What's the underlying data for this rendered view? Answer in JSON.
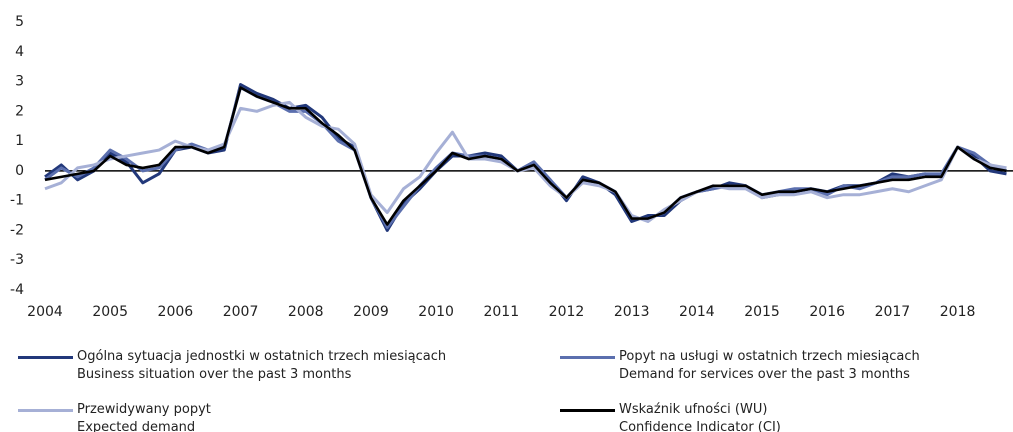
{
  "chart_data": {
    "type": "line",
    "x": [
      2004,
      2004.25,
      2004.5,
      2004.75,
      2005,
      2005.25,
      2005.5,
      2005.75,
      2006,
      2006.25,
      2006.5,
      2006.75,
      2007,
      2007.25,
      2007.5,
      2007.75,
      2008,
      2008.25,
      2008.5,
      2008.75,
      2009,
      2009.25,
      2009.5,
      2009.75,
      2010,
      2010.25,
      2010.5,
      2010.75,
      2011,
      2011.25,
      2011.5,
      2011.75,
      2012,
      2012.25,
      2012.5,
      2012.75,
      2013,
      2013.25,
      2013.5,
      2013.75,
      2014,
      2014.25,
      2014.5,
      2014.75,
      2015,
      2015.25,
      2015.5,
      2015.75,
      2016,
      2016.25,
      2016.5,
      2016.75,
      2017,
      2017.25,
      2017.5,
      2017.75,
      2018,
      2018.25,
      2018.5,
      2018.75
    ],
    "series": [
      {
        "name": "Ogólna sytuacja jednostki w ostatnich trzech miesiącach\nBusiness situation over the past 3 months",
        "color": "#22387a",
        "values": [
          -0.2,
          0.2,
          -0.3,
          0.0,
          0.6,
          0.3,
          -0.4,
          -0.1,
          0.7,
          0.8,
          0.6,
          0.7,
          2.9,
          2.6,
          2.4,
          2.1,
          2.2,
          1.8,
          1.1,
          0.8,
          -0.9,
          -2.0,
          -1.1,
          -0.6,
          0.0,
          0.5,
          0.5,
          0.6,
          0.5,
          0.0,
          0.3,
          -0.3,
          -1.0,
          -0.2,
          -0.4,
          -0.8,
          -1.7,
          -1.5,
          -1.5,
          -1.0,
          -0.7,
          -0.6,
          -0.4,
          -0.5,
          -0.9,
          -0.8,
          -0.7,
          -0.6,
          -0.7,
          -0.5,
          -0.5,
          -0.4,
          -0.1,
          -0.2,
          -0.1,
          -0.2,
          0.8,
          0.5,
          0.0,
          -0.1
        ]
      },
      {
        "name": "Popyt na usługi w ostatnich trzech miesiącach\nDemand for services over the past 3 months",
        "color": "#5b6fae",
        "values": [
          -0.3,
          0.1,
          -0.2,
          0.1,
          0.7,
          0.4,
          0.0,
          0.1,
          0.7,
          0.9,
          0.7,
          0.8,
          2.8,
          2.5,
          2.3,
          2.0,
          2.0,
          1.6,
          1.0,
          0.7,
          -0.9,
          -1.9,
          -1.2,
          -0.5,
          0.1,
          0.6,
          0.5,
          0.5,
          0.4,
          0.0,
          0.3,
          -0.3,
          -0.9,
          -0.3,
          -0.4,
          -0.7,
          -1.6,
          -1.6,
          -1.4,
          -0.9,
          -0.7,
          -0.6,
          -0.5,
          -0.5,
          -0.8,
          -0.7,
          -0.6,
          -0.6,
          -0.8,
          -0.5,
          -0.6,
          -0.4,
          -0.2,
          -0.2,
          -0.1,
          -0.1,
          0.8,
          0.6,
          0.2,
          0.0
        ]
      },
      {
        "name": "Przewidywany popyt\nExpected demand",
        "color": "#a6b0d6",
        "values": [
          -0.6,
          -0.4,
          0.1,
          0.2,
          0.4,
          0.5,
          0.6,
          0.7,
          1.0,
          0.8,
          0.7,
          0.9,
          2.1,
          2.0,
          2.2,
          2.3,
          1.8,
          1.5,
          1.4,
          0.9,
          -0.8,
          -1.4,
          -0.6,
          -0.2,
          0.6,
          1.3,
          0.4,
          0.4,
          0.3,
          0.0,
          0.1,
          -0.5,
          -0.9,
          -0.4,
          -0.5,
          -0.7,
          -1.5,
          -1.7,
          -1.3,
          -1.0,
          -0.7,
          -0.5,
          -0.6,
          -0.6,
          -0.9,
          -0.8,
          -0.8,
          -0.7,
          -0.9,
          -0.8,
          -0.8,
          -0.7,
          -0.6,
          -0.7,
          -0.5,
          -0.3,
          0.8,
          0.4,
          0.2,
          0.1
        ]
      },
      {
        "name": "Wskaźnik ufności (WU)\nConfidence Indicator (CI)",
        "color": "#000000",
        "values": [
          -0.3,
          -0.2,
          -0.1,
          0.0,
          0.5,
          0.2,
          0.1,
          0.2,
          0.8,
          0.8,
          0.6,
          0.8,
          2.8,
          2.5,
          2.3,
          2.1,
          2.1,
          1.6,
          1.2,
          0.7,
          -0.9,
          -1.8,
          -1.0,
          -0.5,
          0.0,
          0.6,
          0.4,
          0.5,
          0.4,
          0.0,
          0.2,
          -0.4,
          -0.9,
          -0.3,
          -0.4,
          -0.7,
          -1.6,
          -1.6,
          -1.4,
          -0.9,
          -0.7,
          -0.5,
          -0.5,
          -0.5,
          -0.8,
          -0.7,
          -0.7,
          -0.6,
          -0.7,
          -0.6,
          -0.5,
          -0.4,
          -0.3,
          -0.3,
          -0.2,
          -0.2,
          0.8,
          0.4,
          0.1,
          0.0
        ]
      }
    ],
    "xlim": [
      2004,
      2018.85
    ],
    "xticks": [
      2004,
      2005,
      2006,
      2007,
      2008,
      2009,
      2010,
      2011,
      2012,
      2013,
      2014,
      2015,
      2016,
      2017,
      2018
    ],
    "ylim": [
      -4,
      5
    ],
    "yticks": [
      -4,
      -3,
      -2,
      -1,
      0,
      1,
      2,
      3,
      4,
      5
    ]
  }
}
